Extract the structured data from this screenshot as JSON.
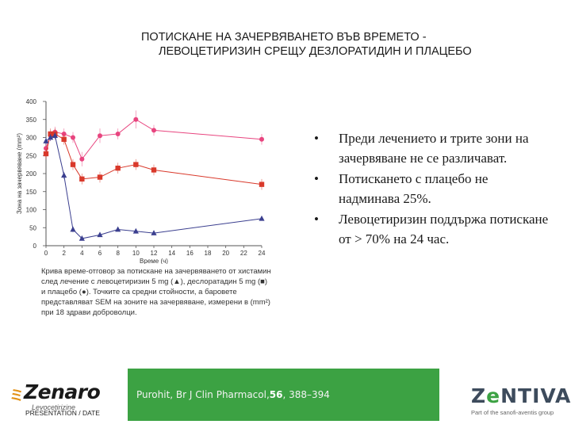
{
  "title": {
    "line1": "ПОТИСКАНЕ НА ЗАЧЕРВЯВАНЕТО ВЪВ ВРЕМЕТО -",
    "line2": "ЛЕВОЦЕТИРИЗИН СРЕЩУ ДЕЗЛОРАТИДИН И ПЛАЦЕБО"
  },
  "chart_data": {
    "type": "line",
    "xlabel": "Време (ч)",
    "ylabel": "Зона на зачервяване (mm²)",
    "x_ticks": [
      0,
      2,
      4,
      6,
      8,
      10,
      12,
      14,
      16,
      18,
      20,
      22,
      24
    ],
    "y_ticks": [
      0,
      50,
      100,
      150,
      200,
      250,
      300,
      350,
      400
    ],
    "xlim": [
      0,
      24
    ],
    "ylim": [
      0,
      400
    ],
    "grid": false,
    "legend": "none",
    "series": [
      {
        "color": "#e8457f",
        "marker": "circle",
        "points": [
          [
            0,
            270
          ],
          [
            0.5,
            305
          ],
          [
            1,
            315
          ],
          [
            2,
            310
          ],
          [
            3,
            300
          ],
          [
            4,
            240
          ],
          [
            6,
            305
          ],
          [
            8,
            310
          ],
          [
            10,
            350
          ],
          [
            12,
            320
          ],
          [
            24,
            295
          ]
        ],
        "errors": [
          15,
          15,
          15,
          15,
          15,
          20,
          20,
          15,
          25,
          15,
          15
        ]
      },
      {
        "color": "#d9392b",
        "marker": "square",
        "points": [
          [
            0,
            255
          ],
          [
            0.5,
            310
          ],
          [
            1,
            310
          ],
          [
            2,
            295
          ],
          [
            3,
            225
          ],
          [
            4,
            185
          ],
          [
            6,
            190
          ],
          [
            8,
            215
          ],
          [
            10,
            225
          ],
          [
            12,
            210
          ],
          [
            24,
            170
          ]
        ],
        "errors": [
          15,
          15,
          15,
          15,
          15,
          15,
          15,
          15,
          15,
          15,
          15
        ]
      },
      {
        "color": "#3b3f8f",
        "marker": "triangle",
        "points": [
          [
            0,
            290
          ],
          [
            0.5,
            300
          ],
          [
            1,
            305
          ],
          [
            2,
            195
          ],
          [
            3,
            45
          ],
          [
            4,
            20
          ],
          [
            6,
            30
          ],
          [
            8,
            45
          ],
          [
            10,
            40
          ],
          [
            12,
            35
          ],
          [
            24,
            75
          ]
        ],
        "errors": [
          10,
          10,
          10,
          10,
          8,
          5,
          5,
          5,
          5,
          5,
          5
        ]
      }
    ]
  },
  "caption": "Крива време-отговор за потискане на зачервяването от хистамин след лечение с левоцетиризин 5 mg (▲), деслоратадин 5 mg (■) и плацебо (●). Точките са средни стойности, а баровете представляват SEM на зоните на зачервяване, измерени в (mm²) при 18 здрави доброволци.",
  "bullets": [
    "Преди лечението и трите зони на зачервяване не се различават.",
    "Потискането с плацебо не надминава 25%.",
    "Левоцетиризин поддържа потискане от > 70% на 24 час."
  ],
  "bullet_symbol": "•",
  "citation": {
    "prefix": "Purohit, Br J Clin Pharmacol,",
    "volume": "56",
    "pages": ", 388–394"
  },
  "logo_left": {
    "brand": "Zenaro",
    "sub": "Levocetirizine",
    "footer": "PRESENTATION / DATE"
  },
  "logo_right": {
    "brand_pre": "Z",
    "brand_e": "e",
    "brand_post": "NTIVA",
    "tagline": "Part of the sanofi-aventis group"
  }
}
